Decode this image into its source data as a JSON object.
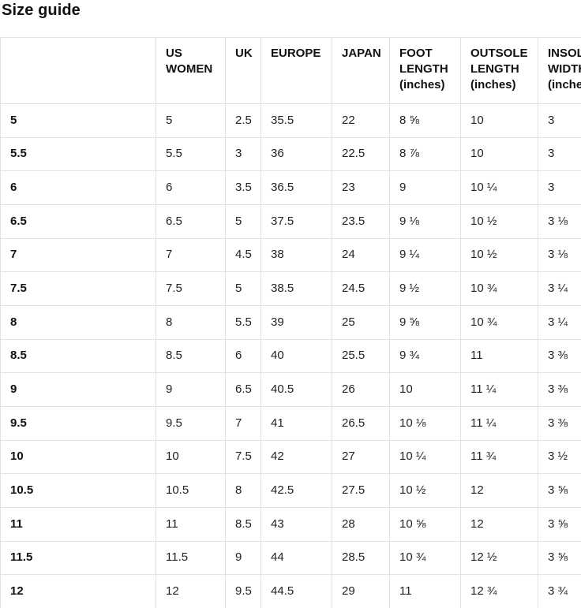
{
  "page_title": "Size guide",
  "table": {
    "columns": [
      "",
      "US WOMEN",
      "UK",
      "EUROPE",
      "JAPAN",
      "FOOT LENGTH (inches)",
      "OUTSOLE LENGTH (inches)",
      "INSOLE WIDTH (inches)"
    ],
    "rows": [
      [
        "5",
        "5",
        "2.5",
        "35.5",
        "22",
        "8 ⅝",
        "10",
        "3"
      ],
      [
        "5.5",
        "5.5",
        "3",
        "36",
        "22.5",
        "8 ⅞",
        "10",
        "3"
      ],
      [
        "6",
        "6",
        "3.5",
        "36.5",
        "23",
        "9",
        "10 ¼",
        "3"
      ],
      [
        "6.5",
        "6.5",
        "5",
        "37.5",
        "23.5",
        "9 ⅛",
        "10 ½",
        "3 ⅛"
      ],
      [
        "7",
        "7",
        "4.5",
        "38",
        "24",
        "9 ¼",
        "10 ½",
        "3 ⅛"
      ],
      [
        "7.5",
        "7.5",
        "5",
        "38.5",
        "24.5",
        "9 ½",
        "10 ¾",
        "3 ¼"
      ],
      [
        "8",
        "8",
        "5.5",
        "39",
        "25",
        "9 ⅝",
        "10 ¾",
        "3 ¼"
      ],
      [
        "8.5",
        "8.5",
        "6",
        "40",
        "25.5",
        "9 ¾",
        "11",
        "3 ⅜"
      ],
      [
        "9",
        "9",
        "6.5",
        "40.5",
        "26",
        "10",
        "11 ¼",
        "3 ⅜"
      ],
      [
        "9.5",
        "9.5",
        "7",
        "41",
        "26.5",
        "10 ⅛",
        "11 ¼",
        "3 ⅜"
      ],
      [
        "10",
        "10",
        "7.5",
        "42",
        "27",
        "10 ¼",
        "11 ¾",
        "3 ½"
      ],
      [
        "10.5",
        "10.5",
        "8",
        "42.5",
        "27.5",
        "10 ½",
        "12",
        "3 ⅝"
      ],
      [
        "11",
        "11",
        "8.5",
        "43",
        "28",
        "10 ⅝",
        "12",
        "3 ⅝"
      ],
      [
        "11.5",
        "11.5",
        "9",
        "44",
        "28.5",
        "10 ¾",
        "12 ½",
        "3 ⅝"
      ],
      [
        "12",
        "12",
        "9.5",
        "44.5",
        "29",
        "11",
        "12 ¾",
        "3 ¾"
      ]
    ]
  },
  "colors": {
    "background": "#ffffff",
    "border": "#e2e2e2",
    "heading_text": "#111111",
    "body_text": "#222222"
  }
}
